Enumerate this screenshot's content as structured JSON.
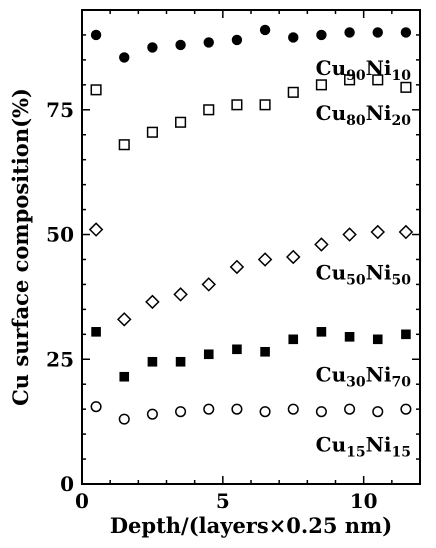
{
  "chart_data": {
    "type": "scatter",
    "title": "",
    "xlabel": "Depth/(layers×0.25 nm)",
    "ylabel": "Cu surface composition(%)",
    "xlim": [
      0,
      12
    ],
    "ylim": [
      0,
      95
    ],
    "xticks": [
      "0",
      "5",
      "10"
    ],
    "yticks": [
      "0",
      "25",
      "50",
      "75"
    ],
    "grid": false,
    "x": [
      0.5,
      1.5,
      2.5,
      3.5,
      4.5,
      5.5,
      6.5,
      7.5,
      8.5,
      9.5,
      10.5,
      11.5
    ],
    "series": [
      {
        "name": "Cu90Ni10",
        "label_main": "Cu",
        "label_sub1": "90",
        "label_mid": "Ni",
        "label_sub2": "10",
        "marker": "filled-circle",
        "values": [
          90,
          85.5,
          87.5,
          88,
          88.5,
          89,
          91,
          89.5,
          90,
          90.5,
          90.5,
          90.5
        ]
      },
      {
        "name": "Cu80Ni20",
        "label_main": "Cu",
        "label_sub1": "80",
        "label_mid": "Ni",
        "label_sub2": "20",
        "marker": "open-square",
        "values": [
          79,
          68,
          70.5,
          72.5,
          75,
          76,
          76,
          78.5,
          80,
          81,
          81,
          79.5
        ]
      },
      {
        "name": "Cu50Ni50",
        "label_main": "Cu",
        "label_sub1": "50",
        "label_mid": "Ni",
        "label_sub2": "50",
        "marker": "open-diamond",
        "values": [
          51,
          33,
          36.5,
          38,
          40,
          43.5,
          45,
          45.5,
          48,
          50,
          50.5,
          50.5
        ]
      },
      {
        "name": "Cu30Ni70",
        "label_main": "Cu",
        "label_sub1": "30",
        "label_mid": "Ni",
        "label_sub2": "70",
        "marker": "filled-square",
        "values": [
          30.5,
          21.5,
          24.5,
          24.5,
          26,
          27,
          26.5,
          29,
          30.5,
          29.5,
          29,
          30
        ]
      },
      {
        "name": "Cu15Ni15",
        "label_main": "Cu",
        "label_sub1": "15",
        "label_mid": "Ni",
        "label_sub2": "15",
        "marker": "open-circle",
        "values": [
          15.5,
          13,
          14,
          14.5,
          15,
          15,
          14.5,
          15,
          14.5,
          15,
          14.5,
          15
        ]
      }
    ],
    "colors": {
      "marker": "#000000",
      "background": "#ffffff"
    }
  }
}
